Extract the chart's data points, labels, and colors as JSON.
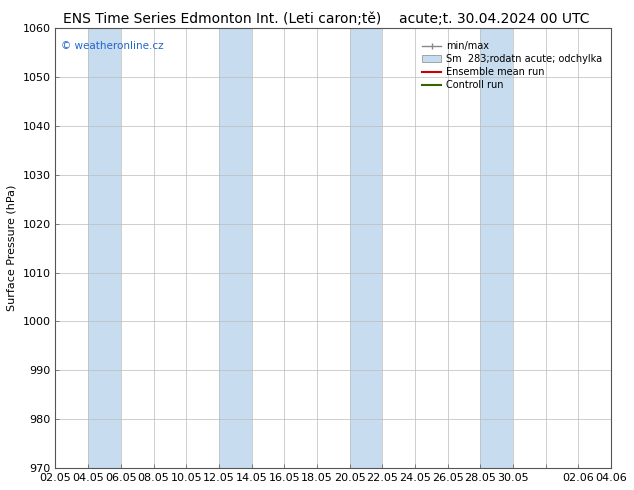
{
  "title_left": "ENS Time Series Edmonton Int. (Leti caron;tě)",
  "title_right": "acute;t. 30.04.2024 00 UTC",
  "ylabel": "Surface Pressure (hPa)",
  "ylim": [
    970,
    1060
  ],
  "yticks": [
    970,
    980,
    990,
    1000,
    1010,
    1020,
    1030,
    1040,
    1050,
    1060
  ],
  "x_labels": [
    "02.05",
    "04.05",
    "06.05",
    "08.05",
    "10.05",
    "12.05",
    "14.05",
    "16.05",
    "18.05",
    "20.05",
    "22.05",
    "24.05",
    "26.05",
    "28.05",
    "30.05",
    "",
    "02.06",
    "04.06"
  ],
  "num_ticks": 18,
  "band_positions": [
    1,
    5,
    11,
    17,
    19,
    25
  ],
  "band_color": "#c8dcf0",
  "bg_color": "#ffffff",
  "plot_bg": "#ffffff",
  "grid_color": "#bbbbbb",
  "legend_entries": [
    "min/max",
    "Sm  283;rodatn acute; odchylka",
    "Ensemble mean run",
    "Controll run"
  ],
  "legend_line_color": "#888888",
  "legend_band_color": "#c8dcf0",
  "legend_red": "#cc0000",
  "legend_green": "#336600",
  "watermark": "© weatheronline.cz",
  "watermark_color": "#2266cc",
  "title_fontsize": 10,
  "axis_fontsize": 8,
  "ylabel_fontsize": 8
}
